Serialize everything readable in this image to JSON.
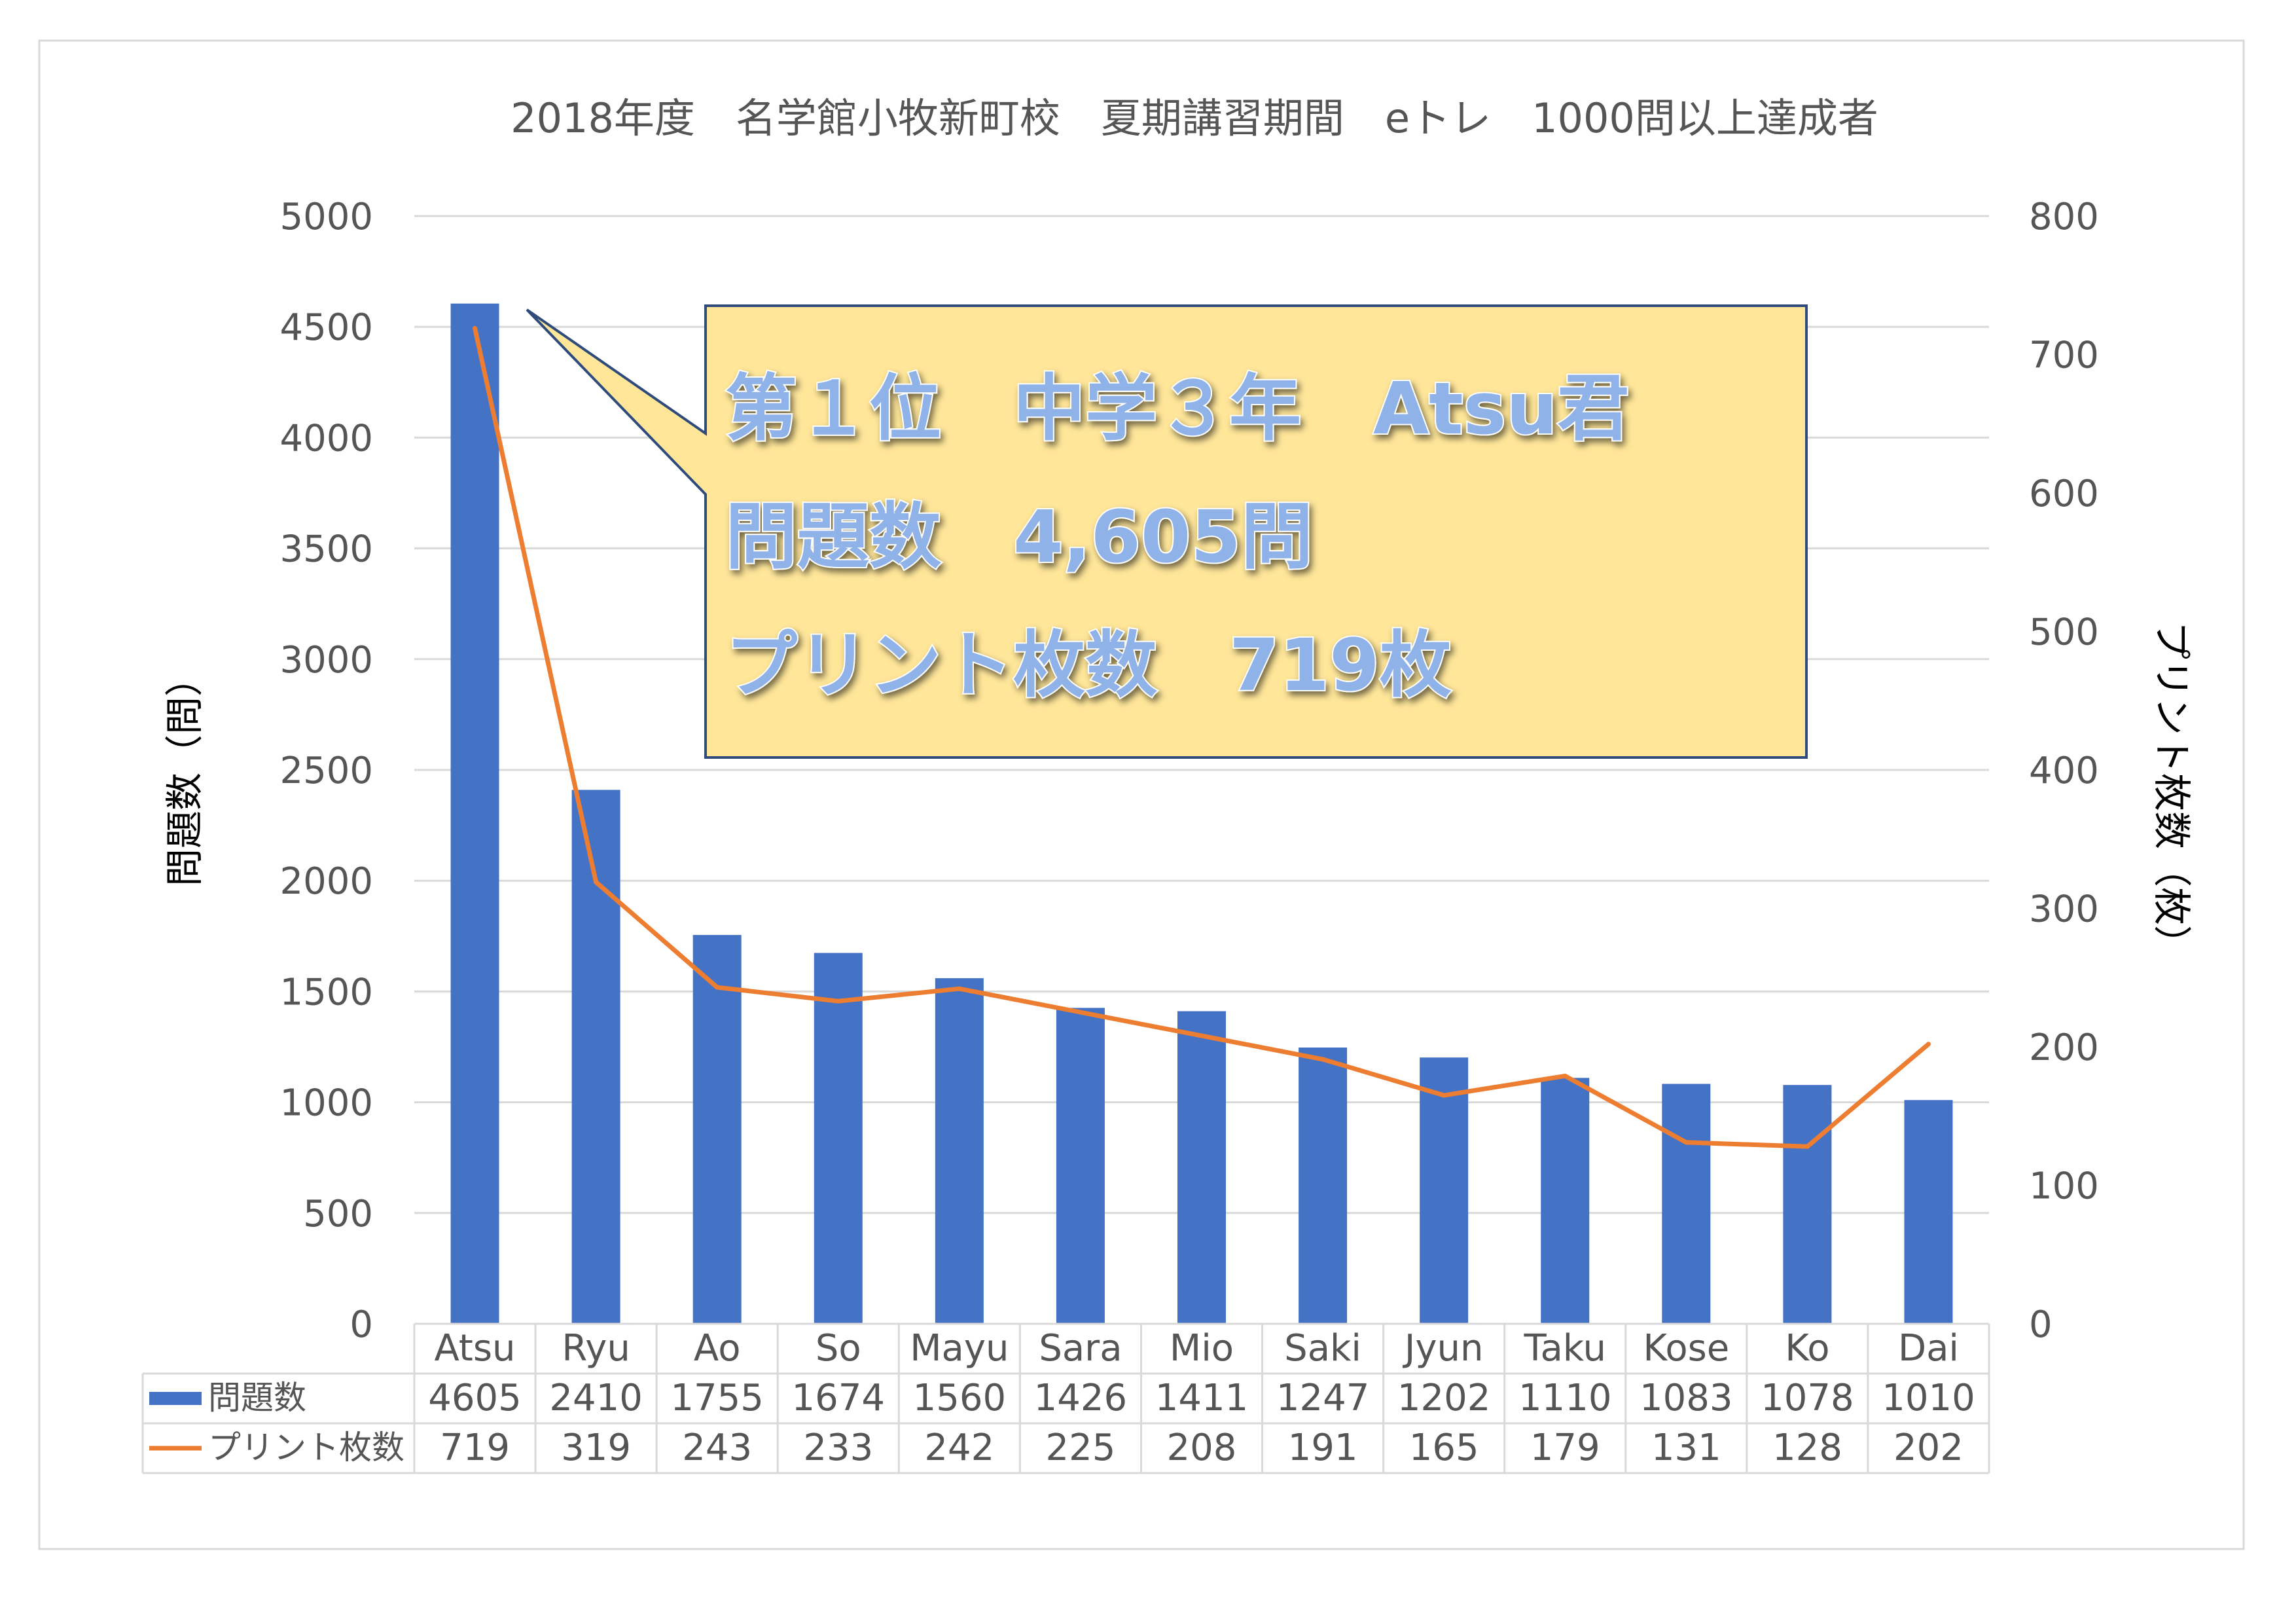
{
  "chart_data": {
    "type": "bar",
    "title": "2018年度　名学館小牧新町校　夏期講習期間　eトレ　1000問以上達成者",
    "categories": [
      "Atsu",
      "Ryu",
      "Ao",
      "So",
      "Mayu",
      "Sara",
      "Mio",
      "Saki",
      "Jyun",
      "Taku",
      "Kose",
      "Ko",
      "Dai"
    ],
    "series": [
      {
        "name": "問題数",
        "type": "bar",
        "axis": "left",
        "color": "#4472c4",
        "values": [
          4605,
          2410,
          1755,
          1674,
          1560,
          1426,
          1411,
          1247,
          1202,
          1110,
          1083,
          1078,
          1010
        ]
      },
      {
        "name": "プリント枚数",
        "type": "line",
        "axis": "right",
        "color": "#ed7d31",
        "values": [
          719,
          319,
          243,
          233,
          242,
          225,
          208,
          191,
          165,
          179,
          131,
          128,
          202
        ]
      }
    ],
    "ylabel": "問題数（問）",
    "y2label": "プリント枚数（枚）",
    "ylim": [
      0,
      5000
    ],
    "y2lim": [
      0,
      800
    ],
    "yticks": [
      "0",
      "500",
      "1000",
      "1500",
      "2000",
      "2500",
      "3000",
      "3500",
      "4000",
      "4500",
      "5000"
    ],
    "y2ticks": [
      "0",
      "100",
      "200",
      "300",
      "400",
      "500",
      "600",
      "700",
      "800"
    ],
    "grid": true,
    "legend": "data-table"
  },
  "callout": {
    "line1": "第１位　中学３年　Atsu君",
    "line2": "問題数　4,605問",
    "line3": "プリント枚数　719枚",
    "fill": "#ffe699",
    "border": "#2f4b7c"
  }
}
